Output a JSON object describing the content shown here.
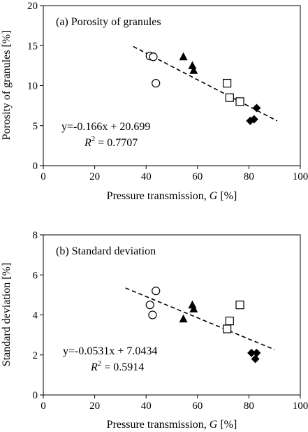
{
  "chart_data": [
    {
      "type": "scatter",
      "panel_title": "(a) Porosity of granules",
      "xlabel_prefix": "Pressure transmission, ",
      "xlabel_var": "G",
      "xlabel_suffix": " [%]",
      "ylabel": "Porosity of granules [%]",
      "xlim": [
        0,
        100
      ],
      "ylim": [
        0,
        20
      ],
      "xticks": [
        "0",
        "20",
        "40",
        "60",
        "80",
        "100"
      ],
      "yticks": [
        "0",
        "5",
        "10",
        "15",
        "20"
      ],
      "grid": false,
      "series": [
        {
          "marker": "circle-open",
          "x": [
            41.5,
            42.8,
            43.8
          ],
          "y": [
            13.7,
            13.6,
            10.3
          ]
        },
        {
          "marker": "triangle-filled",
          "x": [
            54.5,
            58.0,
            58.5
          ],
          "y": [
            13.6,
            12.5,
            11.9
          ]
        },
        {
          "marker": "square-open",
          "x": [
            71.5,
            72.5,
            76.5
          ],
          "y": [
            10.3,
            8.5,
            8.0
          ]
        },
        {
          "marker": "diamond-filled",
          "x": [
            80.5,
            82.0,
            83.0
          ],
          "y": [
            5.6,
            5.8,
            7.2
          ]
        }
      ],
      "trendline": {
        "slope": -0.166,
        "intercept": 20.699,
        "x_range": [
          35,
          91
        ],
        "style": "dashed"
      },
      "equation": "y=-0.166x + 20.699",
      "r2_prefix": "R",
      "r2_exponent": "2",
      "r2_value": " = 0.7707"
    },
    {
      "type": "scatter",
      "panel_title": "(b) Standard deviation",
      "xlabel_prefix": "Pressure transmission, ",
      "xlabel_var": "G",
      "xlabel_suffix": " [%]",
      "ylabel": "Standard deviation [%]",
      "xlim": [
        0,
        100
      ],
      "ylim": [
        0,
        8
      ],
      "xticks": [
        "0",
        "20",
        "40",
        "60",
        "80",
        "100"
      ],
      "yticks": [
        "0",
        "2",
        "4",
        "6",
        "8"
      ],
      "grid": false,
      "series": [
        {
          "marker": "circle-open",
          "x": [
            41.5,
            42.5,
            43.8
          ],
          "y": [
            4.5,
            4.0,
            5.2
          ]
        },
        {
          "marker": "triangle-filled",
          "x": [
            54.5,
            58.0,
            58.5
          ],
          "y": [
            3.8,
            4.5,
            4.3
          ]
        },
        {
          "marker": "square-open",
          "x": [
            71.5,
            72.5,
            76.5
          ],
          "y": [
            3.3,
            3.7,
            4.5
          ]
        },
        {
          "marker": "diamond-filled",
          "x": [
            81.0,
            82.5,
            83.0
          ],
          "y": [
            2.1,
            1.8,
            2.1
          ]
        }
      ],
      "trendline": {
        "slope": -0.0531,
        "intercept": 7.0434,
        "x_range": [
          32,
          90
        ],
        "style": "dashed"
      },
      "equation": "y=-0.0531x + 7.0434",
      "r2_prefix": "R",
      "r2_exponent": "2",
      "r2_value": " = 0.5914"
    }
  ]
}
